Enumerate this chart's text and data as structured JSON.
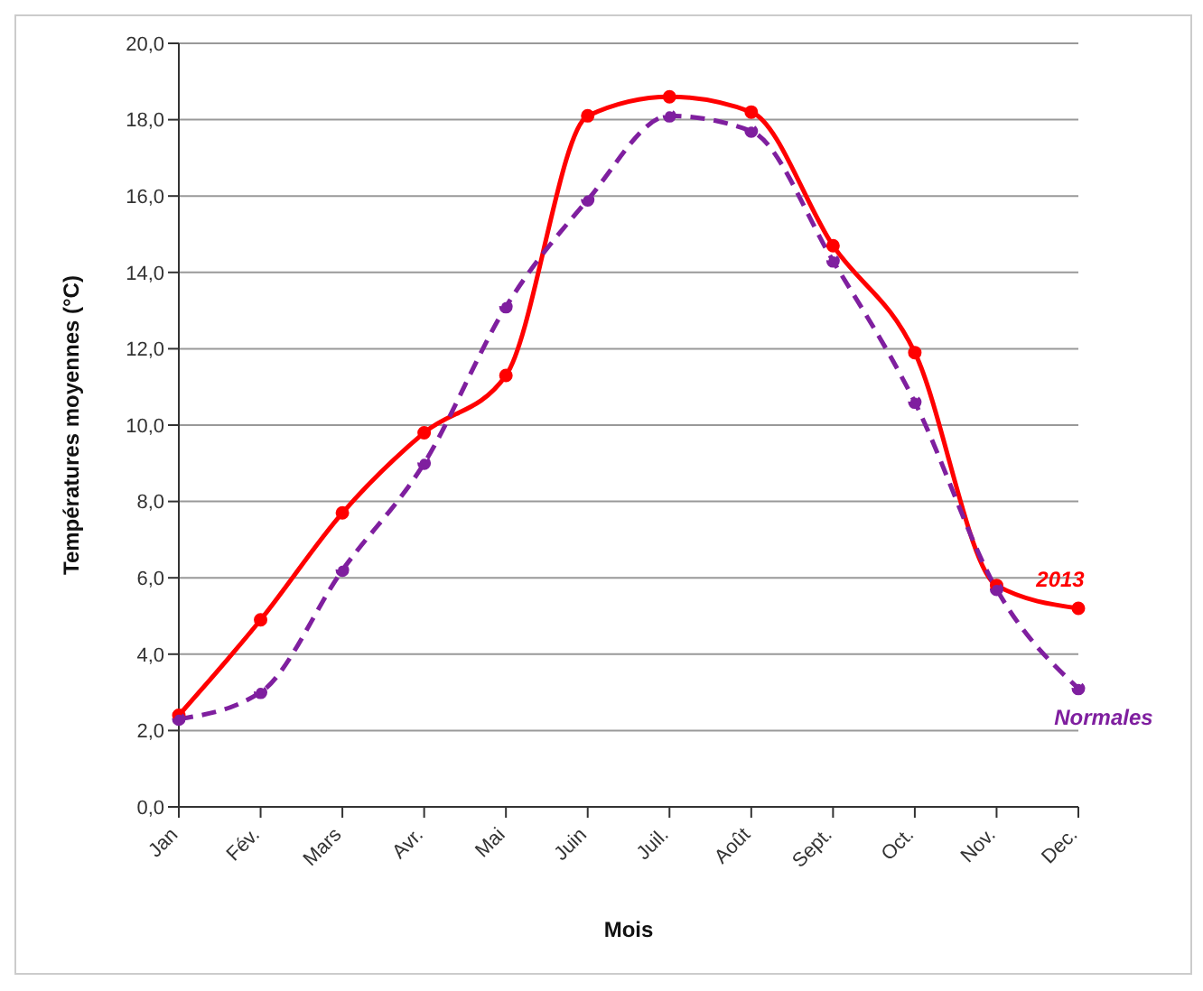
{
  "chart_data": {
    "type": "line",
    "xlabel": "Mois",
    "ylabel": "Températures moyennes (°C)",
    "categories": [
      "Jan",
      "Fév.",
      "Mars",
      "Avr.",
      "Mai",
      "Juin",
      "Juil.",
      "Août",
      "Sept.",
      "Oct.",
      "Nov.",
      "Dec."
    ],
    "series": [
      {
        "name": "2013",
        "color": "#ff0000",
        "line_style": "solid",
        "values": [
          2.4,
          4.9,
          7.7,
          9.8,
          11.3,
          18.1,
          18.6,
          18.2,
          14.7,
          11.9,
          5.8,
          5.2
        ]
      },
      {
        "name": "Normales",
        "color": "#7f1f9f",
        "line_style": "dashed",
        "values": [
          2.3,
          3.0,
          6.2,
          9.0,
          13.1,
          15.9,
          18.1,
          17.7,
          14.3,
          10.6,
          5.7,
          3.1
        ]
      }
    ],
    "ylim": [
      0,
      20
    ],
    "yticks": [
      {
        "value": 0,
        "label": "0,0"
      },
      {
        "value": 2,
        "label": "2,0"
      },
      {
        "value": 4,
        "label": "4,0"
      },
      {
        "value": 6,
        "label": "6,0"
      },
      {
        "value": 8,
        "label": "8,0"
      },
      {
        "value": 10,
        "label": "10,0"
      },
      {
        "value": 12,
        "label": "12,0"
      },
      {
        "value": 14,
        "label": "14,0"
      },
      {
        "value": 16,
        "label": "16,0"
      },
      {
        "value": 18,
        "label": "18,0"
      },
      {
        "value": 20,
        "label": "20,0"
      }
    ],
    "grid": "y",
    "legend": false,
    "marker": "circle"
  }
}
